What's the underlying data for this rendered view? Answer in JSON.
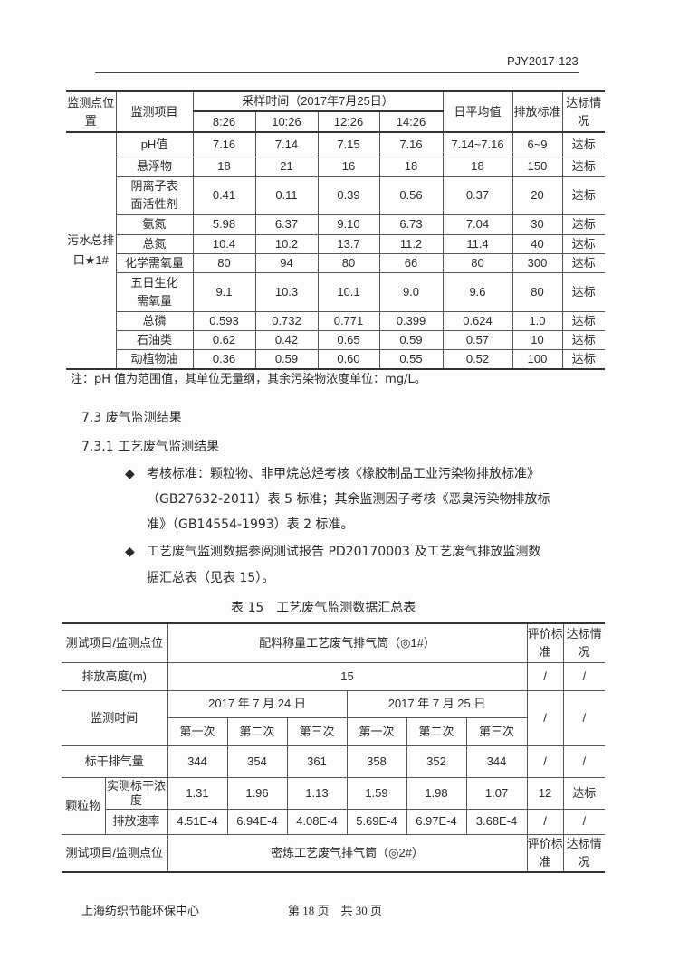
{
  "header": {
    "doc_id": "PJY2017-123"
  },
  "table1": {
    "h_location": "监测点位置",
    "h_item": "监测项目",
    "h_sampling": "采样时间（2017年7月25日）",
    "times": [
      "8:26",
      "10:26",
      "12:26",
      "14:26"
    ],
    "h_avg": "日平均值",
    "h_std": "排放标准",
    "h_status": "达标情况",
    "location": "污水总排口★1#",
    "rows": [
      {
        "item": "pH值",
        "v": [
          "7.16",
          "7.14",
          "7.15",
          "7.16"
        ],
        "avg": "7.14~7.16",
        "std": "6~9",
        "status": "达标"
      },
      {
        "item": "悬浮物",
        "v": [
          "18",
          "21",
          "16",
          "18"
        ],
        "avg": "18",
        "std": "150",
        "status": "达标"
      },
      {
        "item": "阴离子表面活性剂",
        "v": [
          "0.41",
          "0.11",
          "0.39",
          "0.56"
        ],
        "avg": "0.37",
        "std": "20",
        "status": "达标"
      },
      {
        "item": "氨氮",
        "v": [
          "5.98",
          "6.37",
          "9.10",
          "6.73"
        ],
        "avg": "7.04",
        "std": "30",
        "status": "达标"
      },
      {
        "item": "总氮",
        "v": [
          "10.4",
          "10.2",
          "13.7",
          "11.2"
        ],
        "avg": "11.4",
        "std": "40",
        "status": "达标"
      },
      {
        "item": "化学需氧量",
        "v": [
          "80",
          "94",
          "80",
          "66"
        ],
        "avg": "80",
        "std": "300",
        "status": "达标"
      },
      {
        "item": "五日生化需氧量",
        "v": [
          "9.1",
          "10.3",
          "10.1",
          "9.0"
        ],
        "avg": "9.6",
        "std": "80",
        "status": "达标"
      },
      {
        "item": "总磷",
        "v": [
          "0.593",
          "0.732",
          "0.771",
          "0.399"
        ],
        "avg": "0.624",
        "std": "1.0",
        "status": "达标"
      },
      {
        "item": "石油类",
        "v": [
          "0.62",
          "0.42",
          "0.65",
          "0.59"
        ],
        "avg": "0.57",
        "std": "10",
        "status": "达标"
      },
      {
        "item": "动植物油",
        "v": [
          "0.36",
          "0.59",
          "0.60",
          "0.55"
        ],
        "avg": "0.52",
        "std": "100",
        "status": "达标"
      }
    ],
    "note": "注：pH 值为范围值，其单位无量纲，其余污染物浓度单位：mg/L。"
  },
  "section": {
    "s73": "7.3 废气监测结果",
    "s731": "7.3.1 工艺废气监测结果",
    "bullet1": [
      "考核标准：颗粒物、非甲烷总烃考核《橡胶制品工业污染物排放标准》",
      "（GB27632-2011）表 5 标准；其余监测因子考核《恶臭污染物排放标",
      "准》（GB14554-1993）表 2 标准。"
    ],
    "bullet2": [
      "工艺废气监测数据参阅测试报告 PD20170003 及工艺废气排放监测数",
      "据汇总表（见表 15）。"
    ],
    "caption": "表 15　工艺废气监测数据汇总表"
  },
  "table2": {
    "h_item": "测试项目/监测点位",
    "source1": "配料称量工艺废气排气筒（◎1#）",
    "h_eval": "评价标准",
    "h_status": "达标情况",
    "height_label": "排放高度(m)",
    "height_value": "15",
    "slash": "/",
    "time_label": "监测时间",
    "date1": "2017 年 7 月 24 日",
    "date2": "2017 年 7 月 25 日",
    "runs": [
      "第一次",
      "第二次",
      "第三次",
      "第一次",
      "第二次",
      "第三次"
    ],
    "flow_label": "标干排气量",
    "flow": [
      "344",
      "354",
      "361",
      "358",
      "352",
      "344"
    ],
    "pm_label": "颗粒物",
    "conc_label": "实测标干浓度",
    "conc": [
      "1.31",
      "1.96",
      "1.13",
      "1.59",
      "1.98",
      "1.07"
    ],
    "conc_std": "12",
    "conc_status": "达标",
    "rate_label": "排放速率",
    "rate": [
      "4.51E-4",
      "6.94E-4",
      "4.08E-4",
      "5.69E-4",
      "6.97E-4",
      "3.68E-4"
    ],
    "source2": "密炼工艺废气排气筒（◎2#）"
  },
  "footer": {
    "org": "上海纺织节能环保中心",
    "page": "第 18 页　共 30 页"
  }
}
